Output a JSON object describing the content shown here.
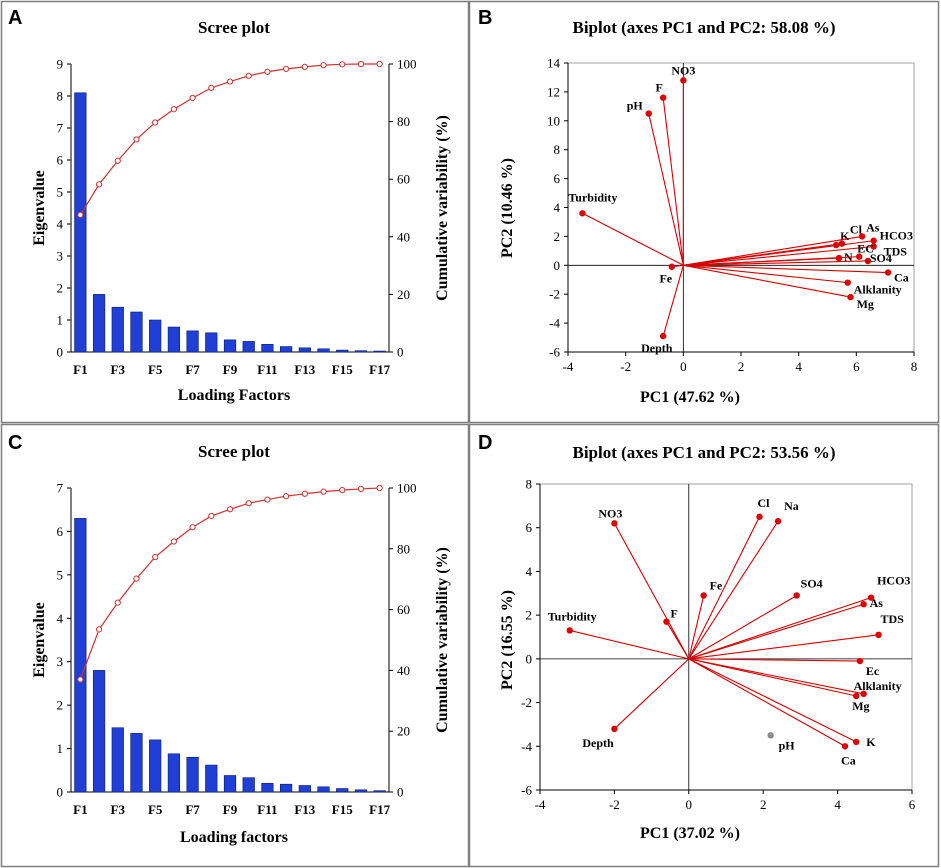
{
  "colors": {
    "bar": "#1f3fd6",
    "bar_edge": "#0a1a6e",
    "cumulative": "#d4302f",
    "vector": "#d90000",
    "point": "#e00000",
    "grey_point": "#8a8a8a",
    "panel_border": "#7f7f7f",
    "plot_border": "#a0a0a0"
  },
  "chart_data": [
    {
      "panel": "A",
      "type": "bar",
      "title": "Scree plot",
      "xlabel": "Loading Factors",
      "ylabel": "Eigenvalue",
      "y2label": "Cumulative variability (%)",
      "categories": [
        "F1",
        "F2",
        "F3",
        "F4",
        "F5",
        "F6",
        "F7",
        "F8",
        "F9",
        "F10",
        "F11",
        "F12",
        "F13",
        "F14",
        "F15",
        "F16",
        "F17"
      ],
      "xtick_labels": [
        "F1",
        "F3",
        "F5",
        "F7",
        "F9",
        "F11",
        "F13",
        "F15",
        "F17"
      ],
      "ylim": [
        0,
        9
      ],
      "yticks": [
        0,
        1,
        2,
        3,
        4,
        5,
        6,
        7,
        8,
        9
      ],
      "y2lim": [
        0,
        100
      ],
      "y2ticks": [
        0,
        20,
        40,
        60,
        80,
        100
      ],
      "series": [
        {
          "name": "Eigenvalue",
          "axis": "left",
          "values": [
            8.1,
            1.8,
            1.4,
            1.25,
            1.0,
            0.78,
            0.66,
            0.6,
            0.38,
            0.33,
            0.24,
            0.17,
            0.13,
            0.1,
            0.06,
            0.04,
            0.03
          ]
        },
        {
          "name": "Cumulative variability (%)",
          "axis": "right",
          "type": "line",
          "values": [
            47.6,
            58.2,
            66.4,
            73.8,
            79.7,
            84.3,
            88.2,
            91.7,
            93.9,
            95.9,
            97.3,
            98.3,
            99.0,
            99.6,
            99.9,
            100,
            100
          ]
        }
      ]
    },
    {
      "panel": "B",
      "type": "scatter",
      "title": "Biplot (axes PC1 and PC2: 58.08 %)",
      "xlabel": "PC1 (47.62 %)",
      "ylabel": "PC2 (10.46 %)",
      "xlim": [
        -4,
        8
      ],
      "xticks": [
        -4,
        -2,
        0,
        2,
        4,
        6,
        8
      ],
      "ylim": [
        -6,
        14
      ],
      "yticks": [
        -6,
        -4,
        -2,
        0,
        2,
        4,
        6,
        8,
        10,
        12,
        14
      ],
      "vectors": [
        {
          "label": "NO3",
          "x": 0.0,
          "y": 12.8
        },
        {
          "label": "F",
          "x": -0.7,
          "y": 11.6
        },
        {
          "label": "pH",
          "x": -1.2,
          "y": 10.5
        },
        {
          "label": "Turbidity",
          "x": -3.5,
          "y": 3.6
        },
        {
          "label": "Fe",
          "x": -0.4,
          "y": -0.1
        },
        {
          "label": "Depth",
          "x": -0.7,
          "y": -4.9
        },
        {
          "label": "Cl",
          "x": 5.5,
          "y": 1.5
        },
        {
          "label": "K",
          "x": 5.3,
          "y": 1.4
        },
        {
          "label": "As",
          "x": 6.2,
          "y": 2.0
        },
        {
          "label": "HCO3",
          "x": 6.6,
          "y": 1.7
        },
        {
          "label": "TDS",
          "x": 6.6,
          "y": 1.3
        },
        {
          "label": "N",
          "x": 5.4,
          "y": 0.5
        },
        {
          "label": "EC",
          "x": 6.1,
          "y": 0.6
        },
        {
          "label": "SO4",
          "x": 6.4,
          "y": 0.3
        },
        {
          "label": "Ca",
          "x": 7.1,
          "y": -0.5
        },
        {
          "label": "Alklanity",
          "x": 5.7,
          "y": -1.2
        },
        {
          "label": "Mg",
          "x": 5.8,
          "y": -2.2
        }
      ]
    },
    {
      "panel": "C",
      "type": "bar",
      "title": "Scree plot",
      "xlabel": "Loading factors",
      "ylabel": "Eigenvalue",
      "y2label": "Cumulative variability (%)",
      "categories": [
        "F1",
        "F2",
        "F3",
        "F4",
        "F5",
        "F6",
        "F7",
        "F8",
        "F9",
        "F10",
        "F11",
        "F12",
        "F13",
        "F14",
        "F15",
        "F16",
        "F17"
      ],
      "xtick_labels": [
        "F1",
        "F3",
        "F5",
        "F7",
        "F9",
        "F11",
        "F13",
        "F15",
        "F17"
      ],
      "ylim": [
        0,
        7
      ],
      "yticks": [
        0,
        1,
        2,
        3,
        4,
        5,
        6,
        7
      ],
      "y2lim": [
        0,
        100
      ],
      "y2ticks": [
        0,
        20,
        40,
        60,
        80,
        100
      ],
      "series": [
        {
          "name": "Eigenvalue",
          "axis": "left",
          "values": [
            6.3,
            2.8,
            1.48,
            1.35,
            1.2,
            0.88,
            0.8,
            0.62,
            0.38,
            0.33,
            0.2,
            0.18,
            0.15,
            0.12,
            0.08,
            0.05,
            0.03
          ]
        },
        {
          "name": "Cumulative variability (%)",
          "axis": "right",
          "type": "line",
          "values": [
            37.0,
            53.5,
            62.3,
            70.2,
            77.3,
            82.4,
            87.1,
            90.8,
            93.0,
            95.0,
            96.2,
            97.3,
            98.1,
            98.8,
            99.3,
            99.7,
            100
          ]
        }
      ]
    },
    {
      "panel": "D",
      "type": "scatter",
      "title": "Biplot (axes PC1 and PC2: 53.56 %)",
      "xlabel": "PC1 (37.02 %)",
      "ylabel": "PC2 (16.55 %)",
      "xlim": [
        -4,
        6
      ],
      "xticks": [
        -4,
        -2,
        0,
        2,
        4,
        6
      ],
      "ylim": [
        -6,
        8
      ],
      "yticks": [
        -6,
        -4,
        -2,
        0,
        2,
        4,
        6,
        8
      ],
      "vectors": [
        {
          "label": "NO3",
          "x": -2.0,
          "y": 6.2
        },
        {
          "label": "Turbidity",
          "x": -3.2,
          "y": 1.3
        },
        {
          "label": "F",
          "x": -0.6,
          "y": 1.7
        },
        {
          "label": "Depth",
          "x": -2.0,
          "y": -3.2
        },
        {
          "label": "Fe",
          "x": 0.4,
          "y": 2.9
        },
        {
          "label": "Cl",
          "x": 1.9,
          "y": 6.5
        },
        {
          "label": "Na",
          "x": 2.4,
          "y": 6.3
        },
        {
          "label": "SO4",
          "x": 2.9,
          "y": 2.9
        },
        {
          "label": "HCO3",
          "x": 4.9,
          "y": 2.8
        },
        {
          "label": "As",
          "x": 4.7,
          "y": 2.5
        },
        {
          "label": "TDS",
          "x": 5.1,
          "y": 1.1
        },
        {
          "label": "Ec",
          "x": 4.6,
          "y": -0.1
        },
        {
          "label": "Alklanity",
          "x": 4.7,
          "y": -1.6
        },
        {
          "label": "Mg",
          "x": 4.5,
          "y": -1.7
        },
        {
          "label": "K",
          "x": 4.5,
          "y": -3.8
        },
        {
          "label": "Ca",
          "x": 4.2,
          "y": -4.0
        }
      ],
      "points": [
        {
          "label": "pH",
          "x": 2.2,
          "y": -3.5
        }
      ]
    }
  ]
}
